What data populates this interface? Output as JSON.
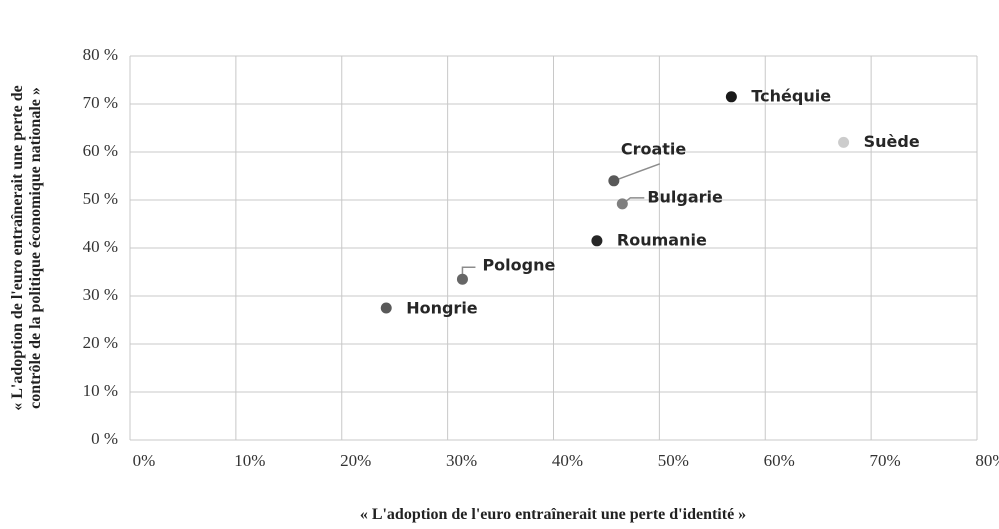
{
  "chart_data": {
    "type": "scatter",
    "xlabel": "« L'adoption de l'euro entraînerait une perte d'identité »",
    "ylabel": [
      "« L'adoption de l'euro entraînerait une perte de",
      "contrôle de la politique économique nationale »"
    ],
    "labels": [
      "Tchéquie",
      "Suède",
      "Croatie",
      "Bulgarie",
      "Roumanie",
      "Pologne",
      "Hongrie"
    ],
    "x": [
      56.8,
      67.4,
      45.7,
      46.5,
      44.1,
      31.4,
      24.2
    ],
    "y": [
      71.5,
      62,
      54,
      49.2,
      41.5,
      33.5,
      27.5
    ],
    "colors": [
      "#1a1a1a",
      "#cccccc",
      "#595959",
      "#7f7f7f",
      "#262626",
      "#666666",
      "#595959"
    ],
    "xlim": [
      0,
      80
    ],
    "ylim": [
      0,
      80
    ],
    "xticks": [
      {
        "value": 0,
        "label": "0%"
      },
      {
        "value": 10,
        "label": "10%"
      },
      {
        "value": 20,
        "label": "20%"
      },
      {
        "value": 30,
        "label": "30%"
      },
      {
        "value": 40,
        "label": "40%"
      },
      {
        "value": 50,
        "label": "50%"
      },
      {
        "value": 60,
        "label": "60%"
      },
      {
        "value": 70,
        "label": "70%"
      },
      {
        "value": 80,
        "label": "80%"
      }
    ],
    "yticks": [
      {
        "value": 0,
        "label": "0 %"
      },
      {
        "value": 10,
        "label": "10 %"
      },
      {
        "value": 20,
        "label": "20 %"
      },
      {
        "value": 30,
        "label": "30 %"
      },
      {
        "value": 40,
        "label": "40 %"
      },
      {
        "value": 50,
        "label": "50 %"
      },
      {
        "value": 60,
        "label": "60 %"
      },
      {
        "value": 70,
        "label": "70 %"
      },
      {
        "value": 80,
        "label": "80 %"
      }
    ],
    "grid": true
  }
}
